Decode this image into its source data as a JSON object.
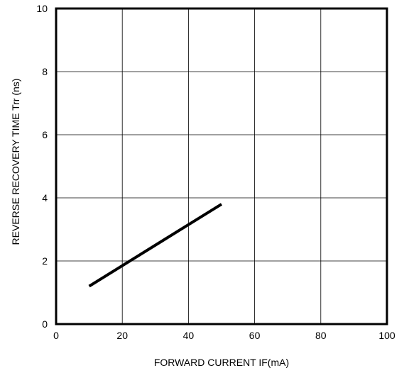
{
  "chart_data": {
    "type": "line",
    "xlabel": "FORWARD CURRENT  IF(mA)",
    "ylabel": "REVERSE RECOVERY TIME  Trr (ns)",
    "xlim": [
      0,
      100
    ],
    "ylim": [
      0,
      10
    ],
    "x_ticks": [
      "0",
      "20",
      "40",
      "60",
      "80",
      "100"
    ],
    "y_ticks": [
      "0",
      "2",
      "4",
      "6",
      "8",
      "10"
    ],
    "grid": true,
    "series": [
      {
        "x": [
          10,
          20,
          30,
          40,
          50
        ],
        "y": [
          1.2,
          1.85,
          2.5,
          3.15,
          3.8
        ]
      }
    ],
    "colors": {
      "line": "#000000",
      "grid": "#000000",
      "background": "#ffffff"
    }
  }
}
